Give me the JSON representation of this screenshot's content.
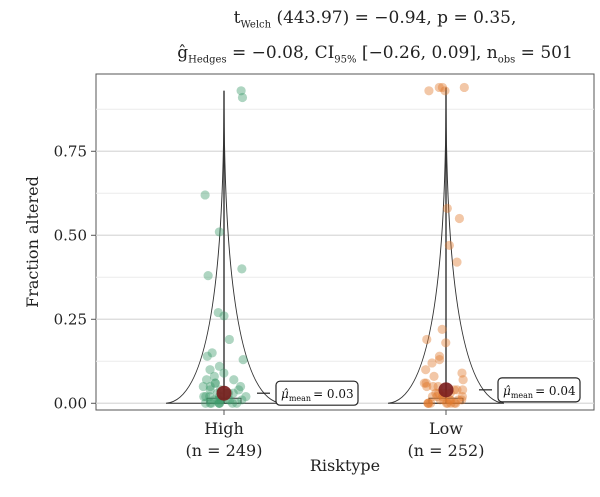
{
  "stats": {
    "line1_prefix": "t",
    "line1_sub": "Welch",
    "line1_rest": " (443.97) = −0.94, p = 0.35,",
    "line2_g": "ĝ",
    "line2_g_sub": "Hedges",
    "line2_mid": " = −0.08, CI",
    "line2_ci_sub": "95%",
    "line2_ci": " [−0.26, 0.09], n",
    "line2_n_sub": "obs",
    "line2_end": " = 501"
  },
  "chart_data": {
    "type": "scatter",
    "subtype": "violin-box-jitter",
    "xlabel": "Risktype",
    "ylabel": "Fraction altered",
    "ylim": [
      -0.02,
      0.98
    ],
    "yticks": [
      0.0,
      0.25,
      0.5,
      0.75
    ],
    "ytick_labels": [
      "0.00",
      "0.25",
      "0.50",
      "0.75"
    ],
    "grid": true,
    "categories": [
      "High",
      "Low"
    ],
    "category_n": [
      "(n = 249)",
      "(n = 252)"
    ],
    "series": [
      {
        "name": "High",
        "color": "#3f9a6b",
        "mean": 0.03,
        "mean_label_symbol": "μ̂",
        "mean_label_sub": "mean",
        "mean_label_value": "= 0.03",
        "whisker_range": [
          0.0,
          0.93
        ],
        "points": [
          0.93,
          0.91,
          0.62,
          0.51,
          0.4,
          0.38,
          0.27,
          0.26,
          0.19,
          0.15,
          0.14,
          0.13,
          0.11,
          0.1,
          0.09,
          0.08,
          0.07,
          0.07,
          0.06,
          0.06,
          0.05,
          0.05,
          0.05,
          0.04,
          0.04,
          0.04,
          0.03,
          0.03,
          0.03,
          0.03,
          0.02,
          0.02,
          0.02,
          0.02,
          0.02,
          0.01,
          0.01,
          0.01,
          0.01,
          0.01,
          0.01,
          0.01,
          0.0,
          0.0,
          0.0,
          0.0,
          0.0,
          0.0,
          0.0,
          0.0
        ]
      },
      {
        "name": "Low",
        "color": "#e07a2e",
        "mean": 0.04,
        "mean_label_symbol": "μ̂",
        "mean_label_sub": "mean",
        "mean_label_value": "= 0.04",
        "whisker_range": [
          0.0,
          0.94
        ],
        "points": [
          0.94,
          0.94,
          0.94,
          0.93,
          0.93,
          0.58,
          0.55,
          0.47,
          0.42,
          0.22,
          0.19,
          0.18,
          0.14,
          0.13,
          0.12,
          0.1,
          0.09,
          0.08,
          0.07,
          0.06,
          0.06,
          0.05,
          0.05,
          0.05,
          0.04,
          0.04,
          0.04,
          0.03,
          0.03,
          0.03,
          0.03,
          0.02,
          0.02,
          0.02,
          0.02,
          0.01,
          0.01,
          0.01,
          0.01,
          0.01,
          0.01,
          0.0,
          0.0,
          0.0,
          0.0,
          0.0,
          0.0,
          0.0,
          0.0,
          0.0
        ]
      }
    ],
    "mean_marker_color": "#7a1d1d"
  }
}
